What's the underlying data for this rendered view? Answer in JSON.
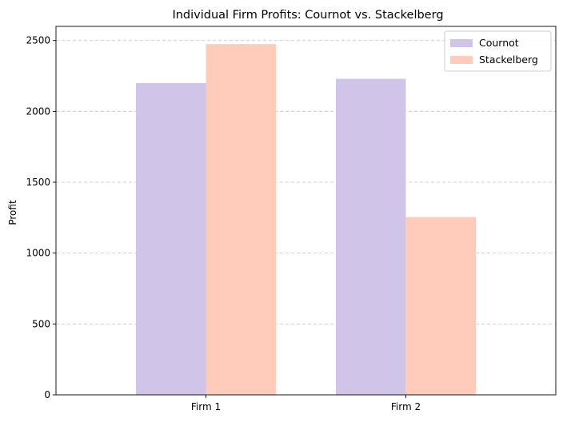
{
  "chart_data": {
    "type": "bar",
    "title": "Individual Firm Profits: Cournot vs. Stackelberg",
    "xlabel": "",
    "ylabel": "Profit",
    "categories": [
      "Firm 1",
      "Firm 2"
    ],
    "series": [
      {
        "name": "Cournot",
        "values": [
          2200,
          2230
        ],
        "color": "#d0c4e8"
      },
      {
        "name": "Stackelberg",
        "values": [
          2475,
          1255
        ],
        "color": "#ffcbbb"
      }
    ],
    "ylim": [
      0,
      2600
    ],
    "yticks": [
      0,
      500,
      1000,
      1500,
      2000,
      2500
    ],
    "grid": {
      "y": true,
      "style": "dashed",
      "color": "#c8c8c8"
    },
    "legend_position": "top-right"
  }
}
